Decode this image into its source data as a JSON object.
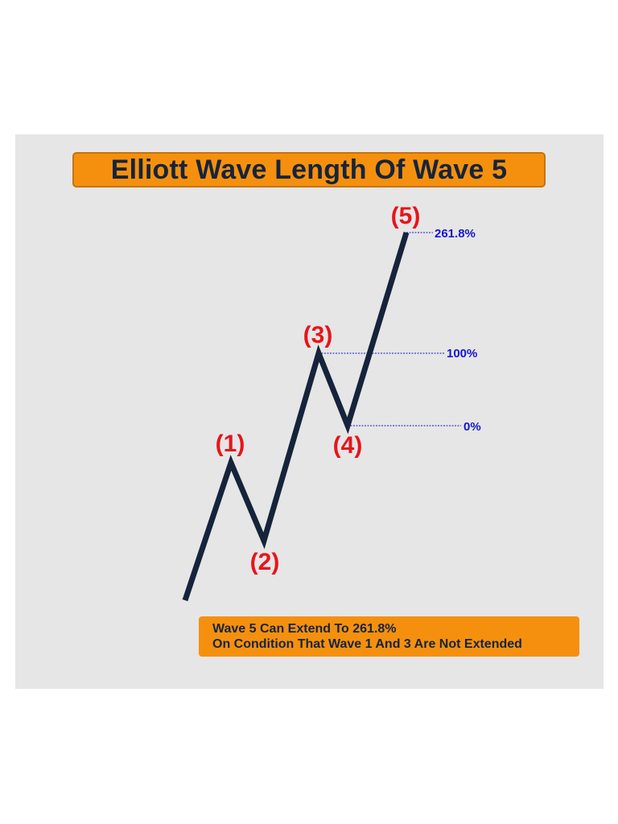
{
  "title": "Elliott Wave Length Of Wave 5",
  "waves": [
    {
      "label": "(1)"
    },
    {
      "label": "(2)"
    },
    {
      "label": "(3)"
    },
    {
      "label": "(4)"
    },
    {
      "label": "(5)"
    }
  ],
  "levels": [
    {
      "label": "261.8%",
      "ratio": 2.618
    },
    {
      "label": "100%",
      "ratio": 1.0
    },
    {
      "label": "0%",
      "ratio": 0.0
    }
  ],
  "note": {
    "line1": "Wave 5 Can Extend To 261.8%",
    "line2": "On Condition That Wave 1 And 3 Are Not Extended"
  },
  "colors": {
    "panel_bg": "#e6e6e6",
    "title_bg": "#f5900f",
    "title_text": "#15243b",
    "wave_line": "#15243b",
    "wave_label": "#e8141c",
    "level_text": "#1414d2",
    "level_line": "#1414d2"
  }
}
